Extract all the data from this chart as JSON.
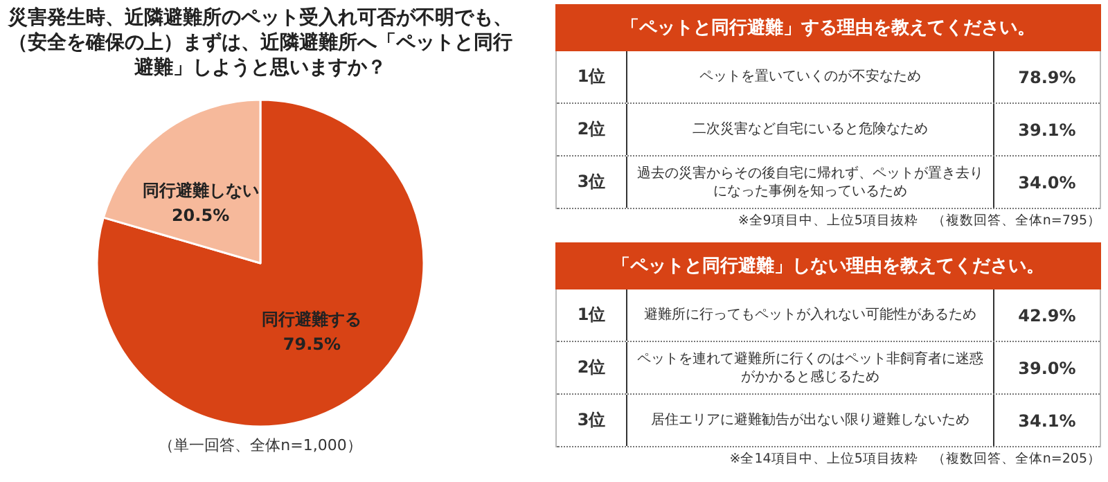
{
  "chart_data": [
    {
      "type": "pie",
      "title": "災害発生時、近隣避難所のペット受入れ可否が不明でも、（安全を確保の上）まずは、近隣避難所へ「ペットと同行避難」しようと思いますか？",
      "categories": [
        "同行避難する",
        "同行避難しない"
      ],
      "values": [
        79.5,
        20.5
      ],
      "colors": [
        "#d84315",
        "#f6b99b"
      ],
      "value_labels": [
        "79.5%",
        "20.5%"
      ],
      "annotations": [
        "（単一回答、全体n=1,000）"
      ],
      "legend": false
    },
    {
      "type": "other",
      "title": "「ペットと同行避難」する理由を教えてください。",
      "categories": [
        "ペットを置いていくのが不安なため",
        "二次災害など自宅にいると危険なため",
        "過去の災害からその後自宅に帰れず、ペットが置き去りになった事例を知っているため"
      ],
      "values": [
        78.9,
        39.1,
        34.0
      ],
      "value_labels": [
        "78.9%",
        "39.1%",
        "34.0%"
      ],
      "color": "#d84315",
      "annotations": [
        "1位",
        "2位",
        "3位",
        "※全9項目中、上位5項目抜粋　（複数回答、全体n=795）"
      ]
    },
    {
      "type": "other",
      "title": "「ペットと同行避難」しない理由を教えてください。",
      "categories": [
        "避難所に行ってもペットが入れない可能性があるため",
        "ペットを連れて避難所に行くのはペット非飼育者に迷惑がかかると感じるため",
        "居住エリアに避難勧告が出ない限り避難しないため"
      ],
      "values": [
        42.9,
        39.0,
        34.1
      ],
      "value_labels": [
        "42.9%",
        "39.0%",
        "34.1%"
      ],
      "color": "#d84315",
      "annotations": [
        "1位",
        "2位",
        "3位",
        "※全14項目中、上位5項目抜粋　（複数回答、全体n=205）"
      ]
    }
  ]
}
